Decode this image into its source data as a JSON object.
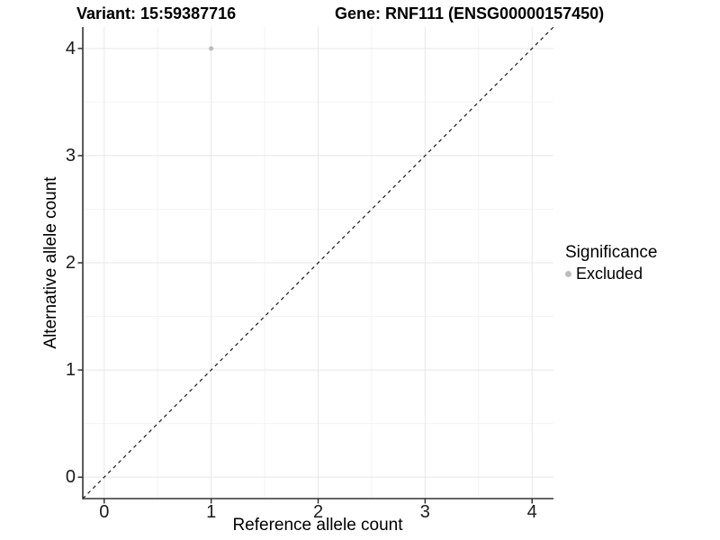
{
  "chart_data": {
    "type": "scatter",
    "title_left": "Variant: 15:59387716",
    "title_right": "Gene: RNF111 (ENSG00000157450)",
    "xlabel": "Reference allele count",
    "ylabel": "Alternative allele count",
    "xlim": [
      -0.2,
      4.2
    ],
    "ylim": [
      -0.2,
      4.2
    ],
    "x_major_ticks": [
      0,
      1,
      2,
      3,
      4
    ],
    "y_major_ticks": [
      0,
      1,
      2,
      3,
      4
    ],
    "x_minor_ticks": [
      0.5,
      1.5,
      2.5,
      3.5
    ],
    "y_minor_ticks": [
      0.5,
      1.5,
      2.5,
      3.5
    ],
    "grid": true,
    "legend_position": "right",
    "points": [
      {
        "x": 1,
        "y": 4,
        "series": "Excluded"
      }
    ],
    "reference_line": {
      "type": "identity",
      "slope": 1,
      "intercept": 0,
      "style": "dashed"
    },
    "legend": {
      "title": "Significance",
      "items": [
        {
          "label": "Excluded",
          "color": "#bdbdbd"
        }
      ]
    },
    "colors": {
      "point": "#bdbdbd",
      "grid_major": "#e7e7e7",
      "grid_minor": "#f3f3f3",
      "axis_line": "#333333",
      "tick_mark": "#333333",
      "dashed_line": "#1a1a1a",
      "background": "#ffffff"
    }
  }
}
